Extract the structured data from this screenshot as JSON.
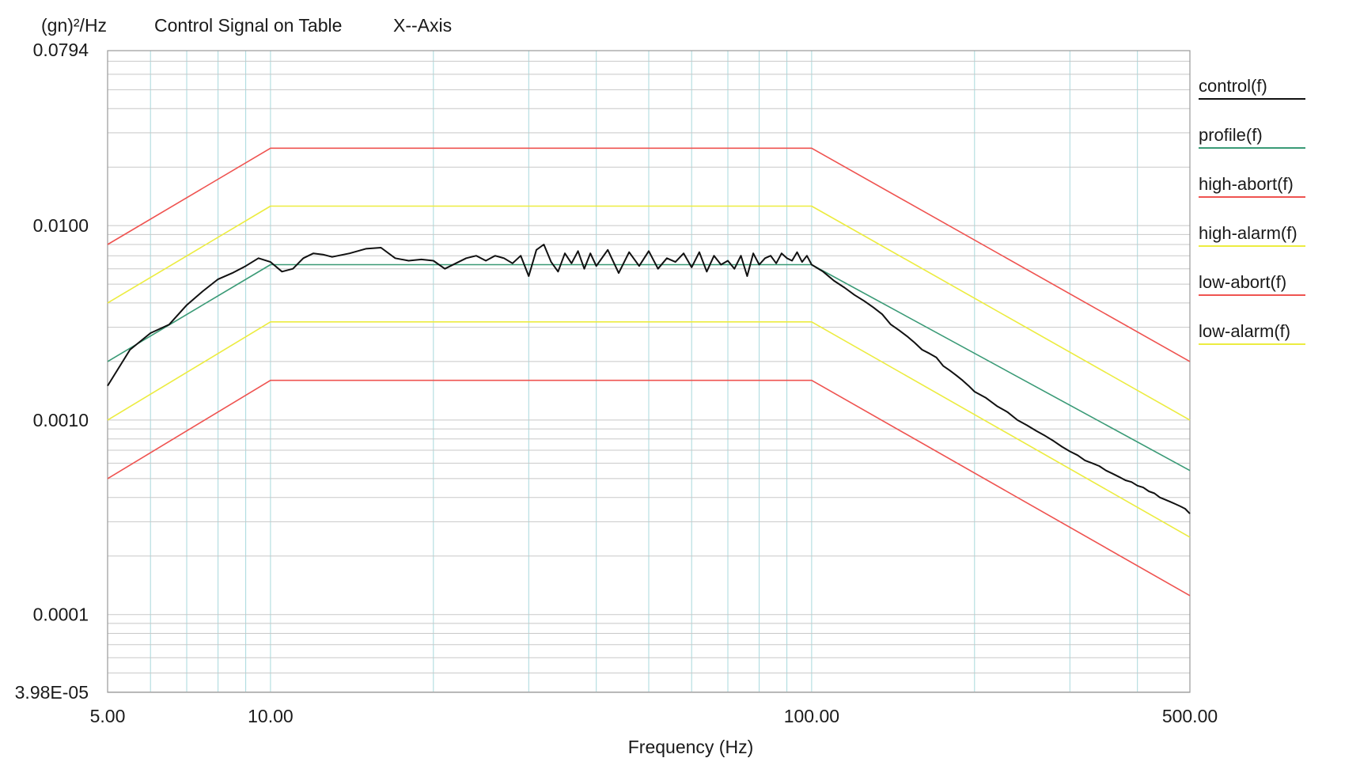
{
  "header": {
    "unit_label": "(gn)²/Hz",
    "title": "Control Signal on Table",
    "axis_name": "X--Axis"
  },
  "chart_data": {
    "type": "line",
    "title": "Control Signal on Table",
    "subtitle": "X--Axis",
    "xlabel": "Frequency (Hz)",
    "ylabel": "(gn)²/Hz",
    "xscale": "log",
    "yscale": "log",
    "xlim": [
      5,
      500
    ],
    "ylim": [
      3.98e-05,
      0.0794
    ],
    "x_ticks": [
      {
        "value": 5,
        "label": "5.00"
      },
      {
        "value": 10,
        "label": "10.00"
      },
      {
        "value": 100,
        "label": "100.00"
      },
      {
        "value": 500,
        "label": "500.00"
      }
    ],
    "y_ticks": [
      {
        "value": 0.0794,
        "label": "0.0794"
      },
      {
        "value": 0.01,
        "label": "0.0100"
      },
      {
        "value": 0.001,
        "label": "0.0010"
      },
      {
        "value": 0.0001,
        "label": "0.0001"
      },
      {
        "value": 3.98e-05,
        "label": "3.98E-05"
      }
    ],
    "grid": true,
    "legend_position": "right",
    "series": [
      {
        "name": "control(f)",
        "color": "#111111",
        "x": [
          5,
          5.5,
          6,
          6.5,
          7,
          7.5,
          8,
          8.5,
          9,
          9.5,
          10,
          10.5,
          11,
          11.5,
          12,
          12.5,
          13,
          14,
          15,
          16,
          17,
          18,
          19,
          20,
          21,
          22,
          23,
          24,
          25,
          26,
          27,
          28,
          29,
          30,
          31,
          32,
          33,
          34,
          35,
          36,
          37,
          38,
          39,
          40,
          42,
          44,
          46,
          48,
          50,
          52,
          54,
          56,
          58,
          60,
          62,
          64,
          66,
          68,
          70,
          72,
          74,
          76,
          78,
          80,
          82,
          84,
          86,
          88,
          90,
          92,
          94,
          96,
          98,
          100,
          105,
          110,
          115,
          120,
          125,
          130,
          135,
          140,
          145,
          150,
          155,
          160,
          165,
          170,
          175,
          180,
          185,
          190,
          195,
          200,
          210,
          220,
          230,
          240,
          250,
          260,
          270,
          280,
          290,
          300,
          310,
          320,
          330,
          340,
          350,
          360,
          370,
          380,
          390,
          400,
          410,
          420,
          430,
          440,
          450,
          460,
          470,
          480,
          490,
          500
        ],
        "values": [
          0.0015,
          0.0023,
          0.0028,
          0.0031,
          0.0039,
          0.0046,
          0.0053,
          0.0057,
          0.0062,
          0.0068,
          0.0065,
          0.0058,
          0.006,
          0.0068,
          0.0072,
          0.0071,
          0.0069,
          0.0072,
          0.0076,
          0.0077,
          0.0068,
          0.0066,
          0.0067,
          0.0066,
          0.006,
          0.0064,
          0.0068,
          0.007,
          0.0066,
          0.007,
          0.0068,
          0.0064,
          0.007,
          0.0055,
          0.0075,
          0.008,
          0.0065,
          0.0058,
          0.0072,
          0.0064,
          0.0074,
          0.006,
          0.0072,
          0.0062,
          0.0075,
          0.0057,
          0.0073,
          0.0062,
          0.0074,
          0.006,
          0.0068,
          0.0065,
          0.0072,
          0.0061,
          0.0073,
          0.0058,
          0.007,
          0.0063,
          0.0066,
          0.006,
          0.007,
          0.0055,
          0.0072,
          0.0063,
          0.0068,
          0.007,
          0.0064,
          0.0072,
          0.0068,
          0.0066,
          0.0073,
          0.0065,
          0.007,
          0.0063,
          0.0058,
          0.0052,
          0.0048,
          0.0044,
          0.0041,
          0.0038,
          0.0035,
          0.0031,
          0.0029,
          0.0027,
          0.0025,
          0.0023,
          0.0022,
          0.0021,
          0.0019,
          0.0018,
          0.0017,
          0.0016,
          0.0015,
          0.0014,
          0.0013,
          0.00118,
          0.0011,
          0.001,
          0.00094,
          0.00088,
          0.00083,
          0.00078,
          0.00073,
          0.00069,
          0.00066,
          0.00062,
          0.0006,
          0.00058,
          0.00055,
          0.00053,
          0.00051,
          0.00049,
          0.00048,
          0.00046,
          0.00045,
          0.00043,
          0.00042,
          0.0004,
          0.00039,
          0.00038,
          0.00037,
          0.00036,
          0.00035,
          0.00033
        ]
      },
      {
        "name": "profile(f)",
        "color": "#3a9a76",
        "x": [
          5,
          10,
          100,
          500
        ],
        "values": [
          0.002,
          0.0063,
          0.0063,
          0.00055
        ]
      },
      {
        "name": "high-abort(f)",
        "color": "#ef5350",
        "x": [
          5,
          10,
          100,
          500
        ],
        "values": [
          0.008,
          0.025,
          0.025,
          0.002
        ]
      },
      {
        "name": "high-alarm(f)",
        "color": "#ecec40",
        "x": [
          5,
          10,
          100,
          500
        ],
        "values": [
          0.004,
          0.0126,
          0.0126,
          0.001
        ]
      },
      {
        "name": "low-abort(f)",
        "color": "#ef5350",
        "x": [
          5,
          10,
          100,
          500
        ],
        "values": [
          0.0005,
          0.0016,
          0.0016,
          0.000125
        ]
      },
      {
        "name": "low-alarm(f)",
        "color": "#ecec40",
        "x": [
          5,
          10,
          100,
          500
        ],
        "values": [
          0.001,
          0.0032,
          0.0032,
          0.00025
        ]
      }
    ]
  }
}
